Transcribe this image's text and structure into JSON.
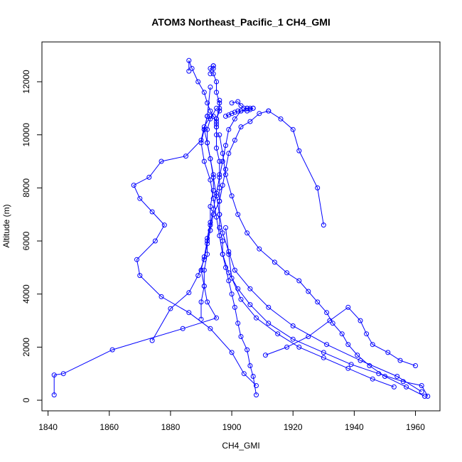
{
  "chart_data": {
    "type": "line",
    "title": "ATOM3 Northeast_Pacific_1 CH4_GMI",
    "xlabel": "CH4_GMI",
    "ylabel": "Altitude (m)",
    "xlim": [
      1838,
      1968
    ],
    "ylim": [
      -400,
      13500
    ],
    "xticks": [
      1840,
      1860,
      1880,
      1900,
      1920,
      1940,
      1960
    ],
    "yticks": [
      0,
      2000,
      4000,
      6000,
      8000,
      10000,
      12000
    ],
    "grid": false,
    "legend": "none",
    "color": "#0000ff",
    "marker": "open-circle",
    "series": [
      {
        "x": [
          1908,
          1907,
          1906,
          1905,
          1903,
          1902,
          1901,
          1900,
          1899,
          1898,
          1897,
          1897,
          1896,
          1896,
          1896,
          1896,
          1896,
          1896,
          1895,
          1895,
          1895,
          1895,
          1896,
          1896,
          1895,
          1895,
          1894,
          1894,
          1894,
          1894,
          1893,
          1893
        ],
        "y": [
          200,
          900,
          1300,
          1900,
          2400,
          2900,
          3500,
          4000,
          4500,
          5000,
          5500,
          6000,
          6500,
          7000,
          7500,
          8000,
          8500,
          9000,
          9500,
          10000,
          10300,
          10600,
          10900,
          11200,
          11600,
          12000,
          12300,
          12500,
          12600,
          12600,
          12500,
          12300
        ]
      },
      {
        "x": [
          1842,
          1842,
          1845,
          1861,
          1884,
          1895,
          1892,
          1891,
          1890,
          1891,
          1892,
          1893,
          1894,
          1895,
          1896,
          1897,
          1898,
          1899,
          1901,
          1903,
          1905,
          1907
        ],
        "y": [
          200,
          950,
          1000,
          1900,
          2700,
          3100,
          3700,
          4300,
          4900,
          5400,
          6000,
          6600,
          7200,
          7800,
          8400,
          9000,
          9600,
          10200,
          10600,
          10900,
          11000,
          11000
        ]
      },
      {
        "x": [
          1964,
          1962,
          1956,
          1948,
          1939,
          1930,
          1920,
          1912,
          1906,
          1902,
          1899,
          1897,
          1896,
          1895,
          1894,
          1893,
          1891,
          1890,
          1891,
          1892
        ],
        "y": [
          150,
          550,
          700,
          1000,
          1350,
          1800,
          2300,
          2900,
          3600,
          4200,
          4800,
          5500,
          6200,
          6900,
          7600,
          8300,
          9000,
          9700,
          10200,
          10700
        ]
      },
      {
        "x": [
          1908,
          1904,
          1900,
          1893,
          1886,
          1877,
          1870,
          1869,
          1875,
          1878,
          1874,
          1870,
          1868,
          1873,
          1877,
          1885,
          1890,
          1891,
          1893
        ],
        "y": [
          550,
          1000,
          1800,
          2700,
          3300,
          3900,
          4700,
          5300,
          6000,
          6600,
          7100,
          7600,
          8100,
          8400,
          9000,
          9200,
          9800,
          10300,
          10700
        ]
      },
      {
        "x": [
          1874,
          1880,
          1886,
          1889,
          1891,
          1892,
          1893,
          1894,
          1896,
          1897,
          1898,
          1899,
          1901,
          1903,
          1906,
          1909,
          1912,
          1912,
          1916,
          1920,
          1922,
          1928,
          1930
        ],
        "y": [
          2250,
          3450,
          4050,
          4700,
          5300,
          5900,
          6400,
          7000,
          7500,
          8100,
          8700,
          9300,
          9800,
          10300,
          10500,
          10800,
          10900,
          10900,
          10600,
          10200,
          9400,
          8000,
          6600
        ]
      },
      {
        "x": [
          1962,
          1954,
          1942,
          1931,
          1920,
          1912,
          1906,
          1901,
          1899,
          1897,
          1896,
          1895,
          1894,
          1893,
          1892,
          1892,
          1893,
          1895
        ],
        "y": [
          320,
          900,
          1500,
          2100,
          2800,
          3500,
          4200,
          4900,
          5600,
          6300,
          7000,
          7700,
          8400,
          9100,
          9700,
          10200,
          10600,
          11000
        ]
      },
      {
        "x": [
          1890,
          1890,
          1891,
          1891,
          1892,
          1892,
          1893,
          1893,
          1894,
          1894,
          1893,
          1892,
          1891,
          1892,
          1893
        ],
        "y": [
          3050,
          3700,
          4300,
          4900,
          5500,
          6100,
          6700,
          7300,
          7900,
          8500,
          9100,
          9700,
          10200,
          10700,
          11800
        ]
      },
      {
        "x": [
          1963,
          1957,
          1950,
          1945,
          1941,
          1938,
          1936,
          1933,
          1931,
          1928,
          1925,
          1922,
          1918,
          1914,
          1909,
          1905,
          1902,
          1900,
          1898,
          1897,
          1896
        ],
        "y": [
          150,
          500,
          900,
          1300,
          1700,
          2100,
          2500,
          2900,
          3300,
          3700,
          4100,
          4500,
          4800,
          5200,
          5700,
          6300,
          7000,
          7700,
          8500,
          9300,
          10000
        ]
      },
      {
        "x": [
          1886,
          1886,
          1887,
          1889,
          1891,
          1892,
          1893,
          1894,
          1895,
          1895,
          1895,
          1895,
          1896,
          1896
        ],
        "y": [
          12400,
          12800,
          12500,
          12000,
          11600,
          11200,
          10900,
          10700,
          10500,
          10400,
          10300,
          10600,
          11000,
          11300
        ]
      },
      {
        "x": [
          1900,
          1902,
          1903,
          1904,
          1905,
          1906,
          1907,
          1906,
          1905,
          1903,
          1902,
          1901,
          1900,
          1899,
          1898
        ],
        "y": [
          11200,
          11250,
          11100,
          11000,
          11000,
          11000,
          11000,
          10950,
          10900,
          10900,
          10900,
          10850,
          10800,
          10750,
          10700
        ]
      },
      {
        "x": [
          1953,
          1946,
          1938,
          1930,
          1922,
          1915,
          1908,
          1903,
          1900,
          1899,
          1898
        ],
        "y": [
          500,
          800,
          1200,
          1600,
          2000,
          2500,
          3100,
          3800,
          4600,
          5500,
          6500
        ]
      },
      {
        "x": [
          1911,
          1918,
          1925,
          1932,
          1938,
          1942,
          1944,
          1946,
          1951,
          1955,
          1960
        ],
        "y": [
          1700,
          2000,
          2400,
          3000,
          3500,
          3000,
          2500,
          2100,
          1800,
          1500,
          1300
        ]
      }
    ]
  }
}
